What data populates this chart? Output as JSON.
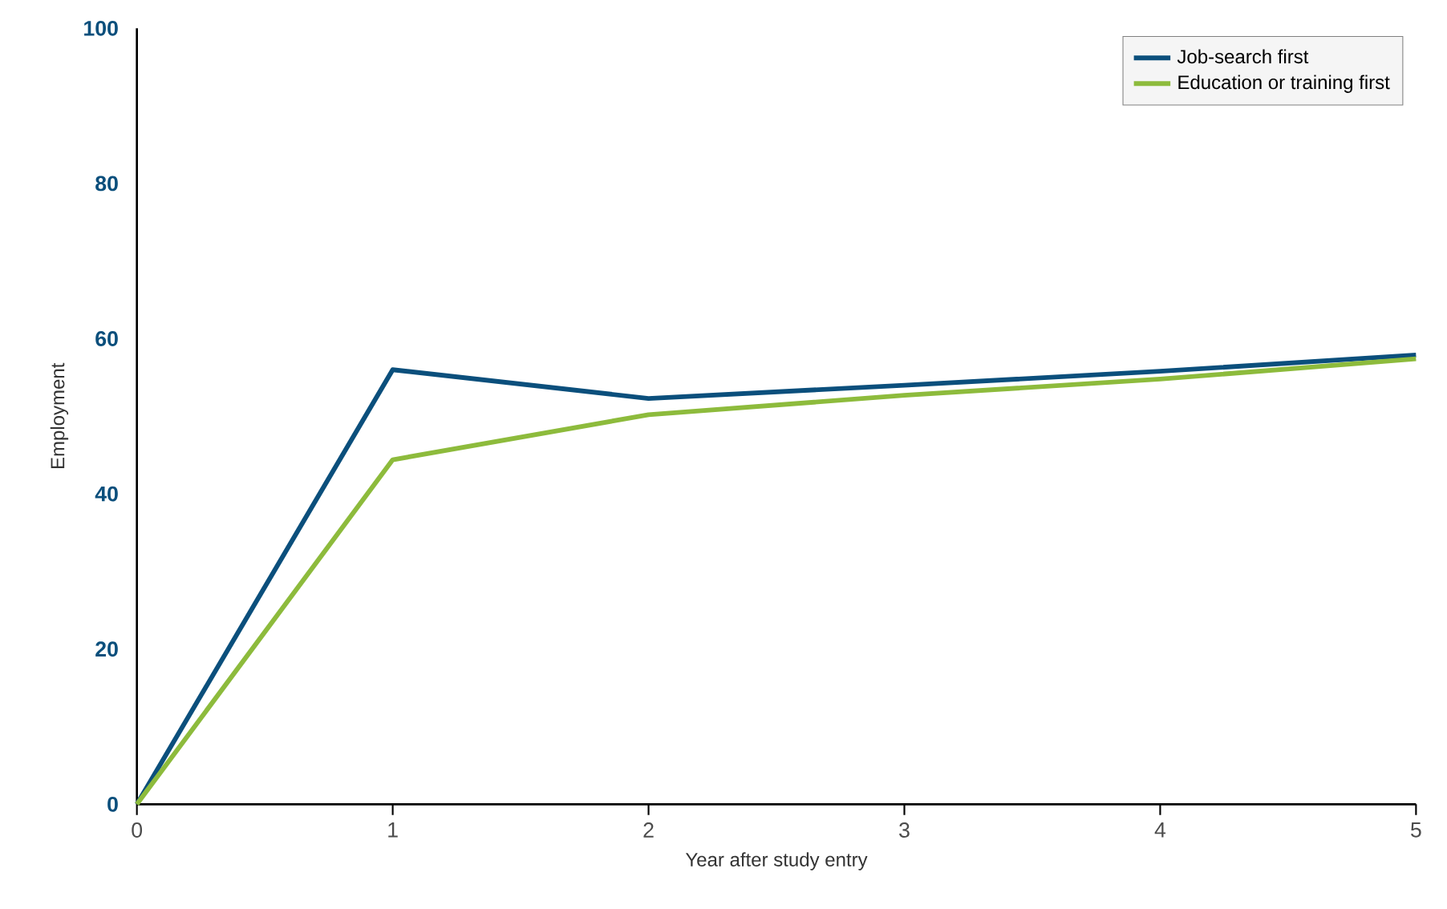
{
  "chart_data": {
    "type": "line",
    "xlabel": "Year after study entry",
    "ylabel": "Employment",
    "x": [
      0,
      1,
      2,
      3,
      4,
      5
    ],
    "series": [
      {
        "name": "Job-search first",
        "color": "#0b4f7c",
        "values": [
          0,
          56,
          52.3,
          54,
          55.8,
          57.9
        ]
      },
      {
        "name": "Education or training first",
        "color": "#8dbb3c",
        "values": [
          0,
          44.4,
          50.2,
          52.7,
          54.8,
          57.4
        ]
      }
    ],
    "xlim": [
      0,
      5
    ],
    "ylim": [
      0,
      100
    ],
    "xticks": [
      0,
      1,
      2,
      3,
      4,
      5
    ],
    "yticks": [
      0,
      20,
      40,
      60,
      80,
      100
    ],
    "legend": "top right",
    "line_style": "solid"
  }
}
